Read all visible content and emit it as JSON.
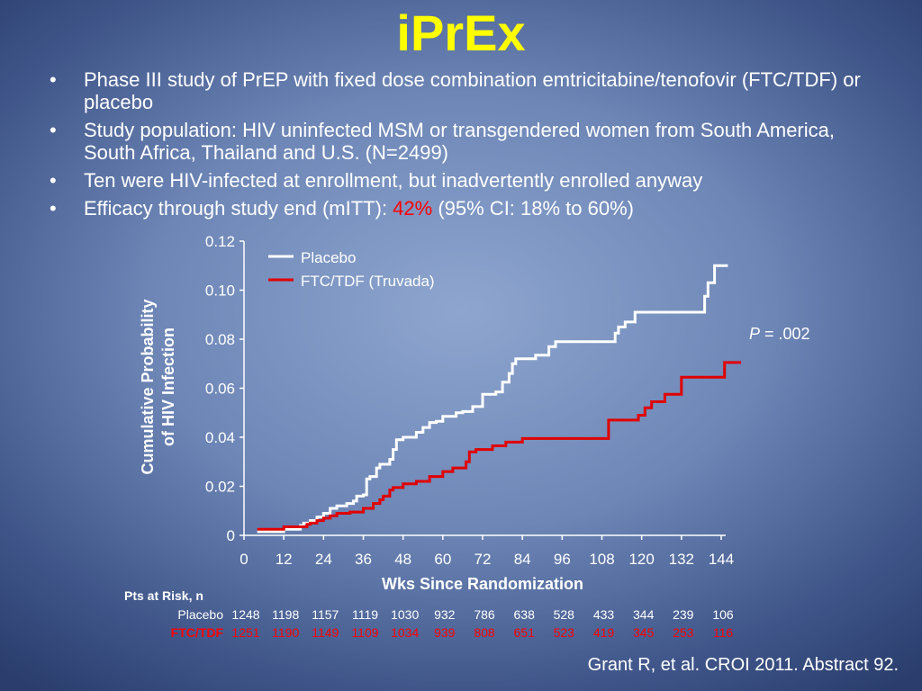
{
  "slide": {
    "title": "iPrEx",
    "bullets": [
      {
        "text": "Phase III study of PrEP with fixed dose combination emtricitabine/tenofovir (FTC/TDF) or placebo"
      },
      {
        "text": "Study population:  HIV uninfected MSM or transgendered women from South America, South Africa, Thailand and U.S. (N=2499)"
      },
      {
        "text": "Ten were HIV-infected at enrollment, but inadvertently enrolled anyway"
      },
      {
        "prefix": "Efficacy through study end (mITT): ",
        "highlight": "42%",
        "suffix": " (95% CI: 18% to 60%)"
      }
    ],
    "bullet_char": "•",
    "p_value": {
      "italic": "P",
      "rest": " = .002"
    },
    "citation": "Grant R, et al. CROI 2011. Abstract 92.",
    "colors": {
      "title": "#ffff00",
      "placebo": "#ffffff",
      "ftc": "#e00000",
      "highlight": "#ff0000"
    }
  },
  "chart_data": {
    "type": "line",
    "ylabel_lines": [
      "Cumulative Probability",
      "of HIV Infection"
    ],
    "xlabel": "Wks Since Randomization",
    "ylim": [
      0,
      0.12
    ],
    "xlim": [
      0,
      144
    ],
    "xticks": [
      0,
      12,
      24,
      36,
      48,
      60,
      72,
      84,
      96,
      108,
      120,
      132,
      144
    ],
    "xtick_labels": [
      "0",
      "12",
      "24",
      "36",
      "48",
      "60",
      "72",
      "84",
      "96",
      "108",
      "120",
      "132",
      "144"
    ],
    "yticks": [
      0,
      0.02,
      0.04,
      0.06,
      0.08,
      0.1,
      0.12
    ],
    "ytick_labels": [
      "0",
      "0.02",
      "0.04",
      "0.06",
      "0.08",
      "0.10",
      "0.12"
    ],
    "legend_placement": "top-left",
    "series": [
      {
        "name": "Placebo",
        "color": "#ffffff",
        "points": [
          [
            4,
            0.0015
          ],
          [
            12,
            0.0015
          ],
          [
            12,
            0.0025
          ],
          [
            17,
            0.0025
          ],
          [
            17,
            0.004
          ],
          [
            18,
            0.004
          ],
          [
            18,
            0.005
          ],
          [
            20,
            0.005
          ],
          [
            20,
            0.006
          ],
          [
            22,
            0.006
          ],
          [
            22,
            0.0075
          ],
          [
            24,
            0.0075
          ],
          [
            24,
            0.009
          ],
          [
            26,
            0.009
          ],
          [
            26,
            0.011
          ],
          [
            28,
            0.011
          ],
          [
            28,
            0.012
          ],
          [
            31,
            0.012
          ],
          [
            31,
            0.013
          ],
          [
            33,
            0.013
          ],
          [
            33,
            0.014
          ],
          [
            34,
            0.014
          ],
          [
            34,
            0.016
          ],
          [
            36,
            0.016
          ],
          [
            36,
            0.0165
          ],
          [
            37,
            0.0165
          ],
          [
            37,
            0.023
          ],
          [
            38,
            0.023
          ],
          [
            38,
            0.024
          ],
          [
            40,
            0.024
          ],
          [
            40,
            0.0275
          ],
          [
            41,
            0.0275
          ],
          [
            41,
            0.029
          ],
          [
            44,
            0.029
          ],
          [
            44,
            0.031
          ],
          [
            45,
            0.031
          ],
          [
            45,
            0.035
          ],
          [
            46,
            0.035
          ],
          [
            46,
            0.039
          ],
          [
            48,
            0.039
          ],
          [
            48,
            0.04
          ],
          [
            52,
            0.04
          ],
          [
            52,
            0.042
          ],
          [
            54,
            0.042
          ],
          [
            54,
            0.044
          ],
          [
            56,
            0.044
          ],
          [
            56,
            0.046
          ],
          [
            58,
            0.046
          ],
          [
            58,
            0.0465
          ],
          [
            60,
            0.0465
          ],
          [
            60,
            0.0485
          ],
          [
            64,
            0.0485
          ],
          [
            64,
            0.05
          ],
          [
            66,
            0.05
          ],
          [
            66,
            0.0505
          ],
          [
            69,
            0.0505
          ],
          [
            69,
            0.0525
          ],
          [
            72,
            0.0525
          ],
          [
            72,
            0.0575
          ],
          [
            76,
            0.0575
          ],
          [
            76,
            0.0585
          ],
          [
            78,
            0.0585
          ],
          [
            78,
            0.0625
          ],
          [
            80,
            0.0625
          ],
          [
            80,
            0.066
          ],
          [
            81,
            0.066
          ],
          [
            81,
            0.07
          ],
          [
            82,
            0.07
          ],
          [
            82,
            0.072
          ],
          [
            88,
            0.072
          ],
          [
            88,
            0.0735
          ],
          [
            92,
            0.0735
          ],
          [
            92,
            0.077
          ],
          [
            94,
            0.077
          ],
          [
            94,
            0.079
          ],
          [
            112,
            0.079
          ],
          [
            112,
            0.0825
          ],
          [
            113,
            0.0825
          ],
          [
            113,
            0.085
          ],
          [
            115,
            0.085
          ],
          [
            115,
            0.087
          ],
          [
            118,
            0.087
          ],
          [
            118,
            0.091
          ],
          [
            139,
            0.091
          ],
          [
            139,
            0.0975
          ],
          [
            140,
            0.0975
          ],
          [
            140,
            0.103
          ],
          [
            142,
            0.103
          ],
          [
            142,
            0.11
          ],
          [
            146,
            0.11
          ]
        ]
      },
      {
        "name": "FTC/TDF (Truvada)",
        "color": "#e00000",
        "points": [
          [
            4,
            0.0025
          ],
          [
            12,
            0.0025
          ],
          [
            12,
            0.0035
          ],
          [
            19,
            0.0035
          ],
          [
            19,
            0.0045
          ],
          [
            20,
            0.0045
          ],
          [
            20,
            0.005
          ],
          [
            22,
            0.005
          ],
          [
            22,
            0.006
          ],
          [
            24,
            0.006
          ],
          [
            24,
            0.007
          ],
          [
            26,
            0.007
          ],
          [
            26,
            0.008
          ],
          [
            28,
            0.008
          ],
          [
            28,
            0.009
          ],
          [
            32,
            0.009
          ],
          [
            32,
            0.0095
          ],
          [
            36,
            0.0095
          ],
          [
            36,
            0.011
          ],
          [
            39,
            0.011
          ],
          [
            39,
            0.013
          ],
          [
            41,
            0.013
          ],
          [
            41,
            0.0145
          ],
          [
            42,
            0.0145
          ],
          [
            42,
            0.016
          ],
          [
            44,
            0.016
          ],
          [
            44,
            0.0185
          ],
          [
            45,
            0.0185
          ],
          [
            45,
            0.0195
          ],
          [
            48,
            0.0195
          ],
          [
            48,
            0.021
          ],
          [
            52,
            0.021
          ],
          [
            52,
            0.022
          ],
          [
            56,
            0.022
          ],
          [
            56,
            0.024
          ],
          [
            60,
            0.024
          ],
          [
            60,
            0.026
          ],
          [
            63,
            0.026
          ],
          [
            63,
            0.0275
          ],
          [
            67,
            0.0275
          ],
          [
            67,
            0.03
          ],
          [
            68,
            0.03
          ],
          [
            68,
            0.034
          ],
          [
            70,
            0.034
          ],
          [
            70,
            0.035
          ],
          [
            75,
            0.035
          ],
          [
            75,
            0.0365
          ],
          [
            79,
            0.0365
          ],
          [
            79,
            0.038
          ],
          [
            84,
            0.038
          ],
          [
            84,
            0.0395
          ],
          [
            110,
            0.0395
          ],
          [
            110,
            0.047
          ],
          [
            119,
            0.047
          ],
          [
            119,
            0.049
          ],
          [
            121,
            0.049
          ],
          [
            121,
            0.052
          ],
          [
            123,
            0.052
          ],
          [
            123,
            0.0545
          ],
          [
            127,
            0.0545
          ],
          [
            127,
            0.0575
          ],
          [
            132,
            0.0575
          ],
          [
            132,
            0.0645
          ],
          [
            145,
            0.0645
          ],
          [
            145,
            0.0705
          ],
          [
            150,
            0.0705
          ]
        ]
      }
    ]
  },
  "risk_table": {
    "title": "Pts at Risk, n",
    "rows": [
      {
        "label": "Placebo",
        "values": [
          "1248",
          "1198",
          "1157",
          "1119",
          "1030",
          "932",
          "786",
          "638",
          "528",
          "433",
          "344",
          "239",
          "106"
        ]
      },
      {
        "label": "FTC/TDF",
        "values": [
          "1251",
          "1190",
          "1149",
          "1109",
          "1034",
          "939",
          "808",
          "651",
          "523",
          "419",
          "345",
          "253",
          "116"
        ]
      }
    ]
  }
}
